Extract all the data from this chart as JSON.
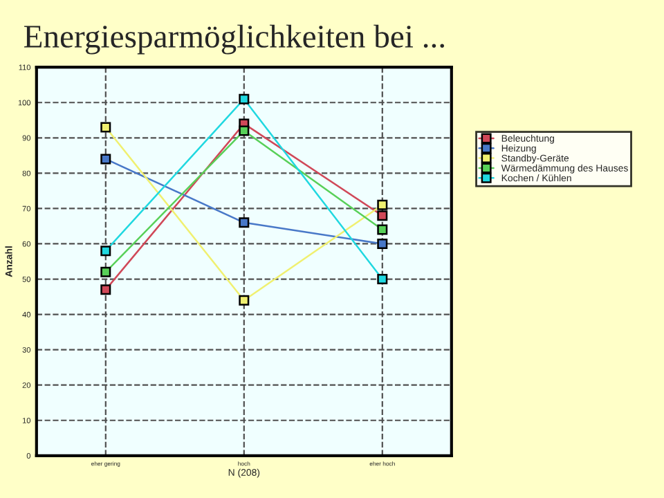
{
  "chart_data": {
    "type": "line",
    "title": "Energiesparmöglichkeiten bei ...",
    "xlabel": "N (208)",
    "ylabel": "Anzahl",
    "categories": [
      "eher gering",
      "hoch",
      "eher hoch"
    ],
    "series": [
      {
        "name": "Beleuchtung",
        "color": "#d04858",
        "values": [
          47,
          94,
          68
        ]
      },
      {
        "name": "Heizung",
        "color": "#4878c8",
        "values": [
          84,
          66,
          60
        ]
      },
      {
        "name": "Standby-Geräte",
        "color": "#f0f070",
        "values": [
          93,
          44,
          71
        ]
      },
      {
        "name": "Wärmedämmung des Hauses",
        "color": "#58d058",
        "values": [
          52,
          92,
          64
        ]
      },
      {
        "name": "Kochen / Kühlen",
        "color": "#20d8e0",
        "values": [
          58,
          101,
          50
        ]
      }
    ],
    "ylim": [
      0,
      110
    ],
    "yticks": [
      0,
      10,
      20,
      30,
      40,
      50,
      60,
      70,
      80,
      90,
      100,
      110
    ],
    "grid": true,
    "legend": "right",
    "marker": "square",
    "line_style": "solid"
  }
}
